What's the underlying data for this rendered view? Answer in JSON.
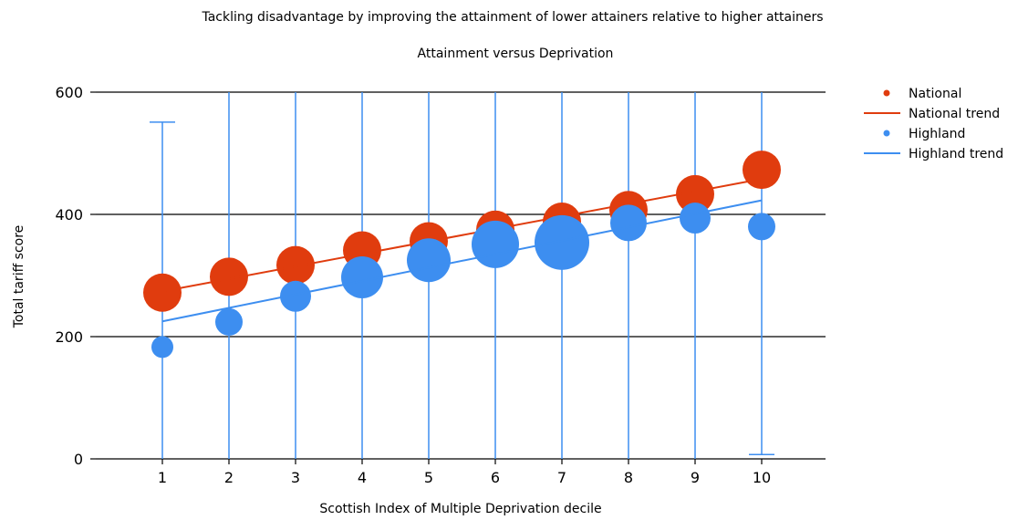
{
  "chart_data": {
    "type": "scatter",
    "title": "Tackling disadvantage by improving the attainment of lower attainers relative to higher attainers",
    "subtitle": "Attainment versus Deprivation",
    "xlabel": "Scottish Index of Multiple Deprivation decile",
    "ylabel": "Total tariff score",
    "xlim": [
      0,
      11
    ],
    "ylim": [
      0,
      600
    ],
    "x_ticks": [
      "1",
      "2",
      "3",
      "4",
      "5",
      "6",
      "7",
      "8",
      "9",
      "10"
    ],
    "y_ticks": [
      "0",
      "200",
      "400",
      "600"
    ],
    "grid": {
      "horizontal": true,
      "vertical": false
    },
    "legend_position": "top-right",
    "series": [
      {
        "name": "National",
        "kind": "bubble",
        "color": "#e03c0e",
        "x": [
          1,
          2,
          3,
          4,
          5,
          6,
          7,
          8,
          9,
          10
        ],
        "y": [
          272,
          298,
          317,
          341,
          356,
          375,
          388,
          407,
          433,
          473
        ],
        "size": [
          21,
          21,
          21,
          21,
          21,
          21,
          21,
          21,
          21,
          21
        ]
      },
      {
        "name": "National trend",
        "kind": "line",
        "color": "#e03c0e",
        "x": [
          1,
          10
        ],
        "y": [
          274,
          458
        ]
      },
      {
        "name": "Highland",
        "kind": "bubble",
        "color": "#3d8ef0",
        "x": [
          1,
          2,
          3,
          4,
          5,
          6,
          7,
          8,
          9,
          10
        ],
        "y": [
          183,
          224,
          266,
          297,
          325,
          351,
          354,
          386,
          394,
          380
        ],
        "size": [
          12,
          15,
          17,
          23,
          24,
          26,
          30,
          20,
          17,
          15
        ]
      },
      {
        "name": "Highland trend",
        "kind": "line",
        "color": "#3d8ef0",
        "x": [
          1,
          10
        ],
        "y": [
          225,
          423
        ]
      }
    ],
    "error_bars": {
      "series": "Highland",
      "color": "#3d8ef0",
      "x": [
        1,
        2,
        3,
        4,
        5,
        6,
        7,
        8,
        9,
        10
      ],
      "upper": [
        551,
        600,
        600,
        600,
        600,
        600,
        600,
        600,
        600,
        600
      ],
      "lower": [
        0,
        0,
        0,
        0,
        0,
        0,
        0,
        0,
        0,
        7
      ]
    }
  }
}
